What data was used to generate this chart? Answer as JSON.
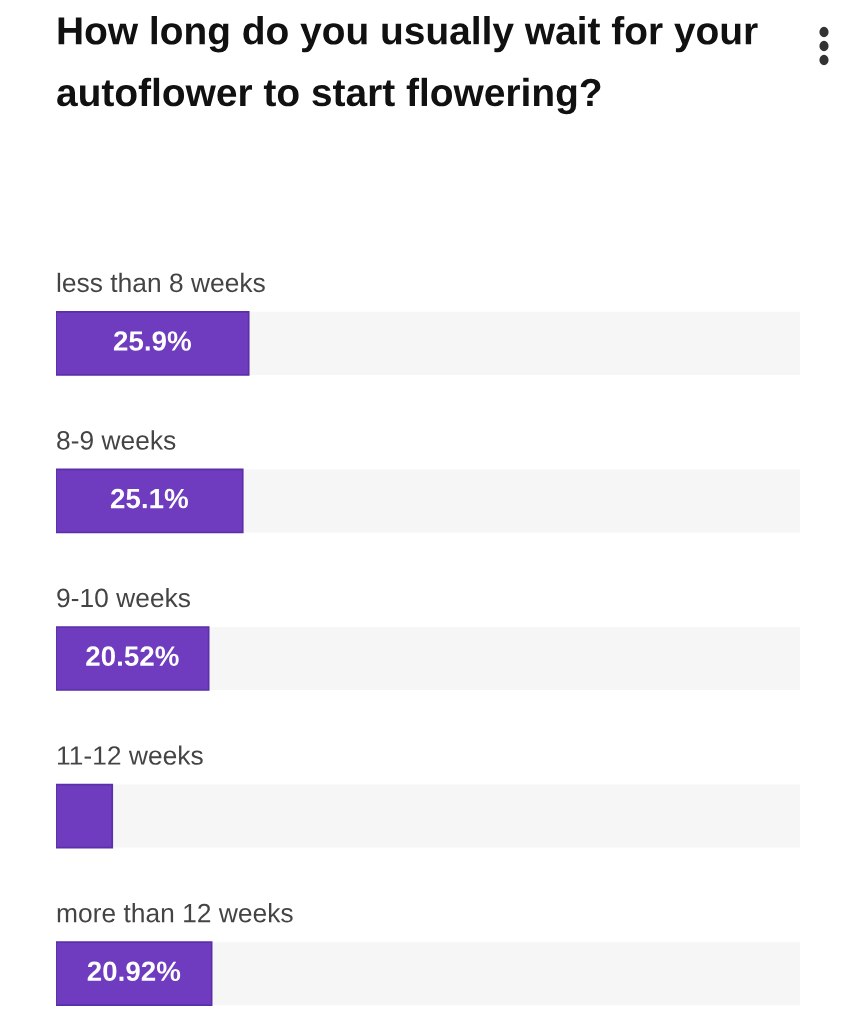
{
  "chart_data": {
    "type": "bar",
    "orientation": "horizontal",
    "title": "How long do you usually wait for your autoflower to start flowering?",
    "categories": [
      "less than 8 weeks",
      "8-9 weeks",
      "9-10 weeks",
      "11-12 weeks",
      "more than 12 weeks"
    ],
    "values": [
      25.9,
      25.1,
      20.52,
      7.56,
      20.92
    ],
    "value_labels": [
      "25.9%",
      "25.1%",
      "20.52%",
      null,
      "20.92%"
    ],
    "color": "#6f3cc0",
    "xlim": [
      0,
      100
    ],
    "tick_labels": false
  }
}
